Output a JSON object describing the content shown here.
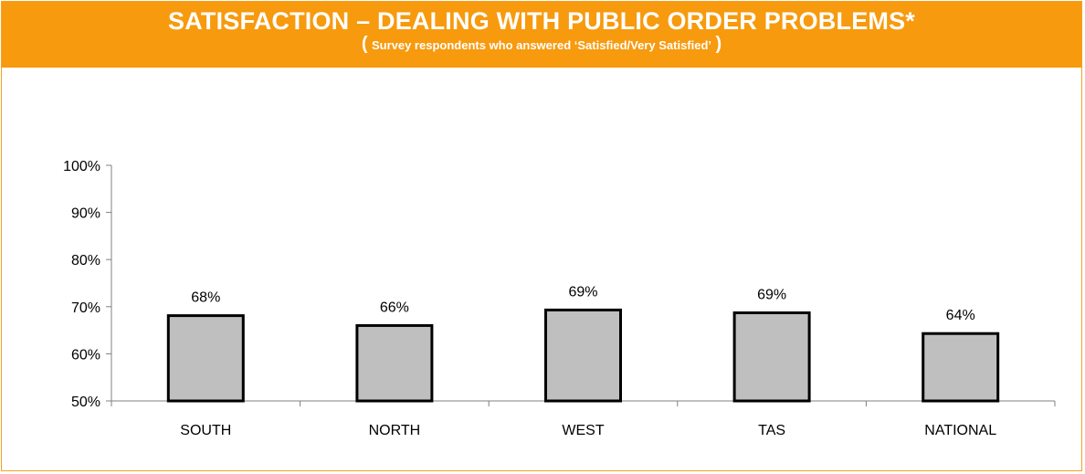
{
  "header": {
    "title": "SATISFACTION – DEALING WITH PUBLIC ORDER PROBLEMS*",
    "paren_open": "(",
    "subtitle": "Survey respondents who answered ‘Satisfied/Very Satisfied’",
    "paren_close": ")"
  },
  "colors": {
    "banner": "#f79a0e",
    "bar_fill": "#bfbfbf",
    "bar_stroke": "#000000",
    "axis": "#808080"
  },
  "chart_data": {
    "type": "bar",
    "categories": [
      "SOUTH",
      "NORTH",
      "WEST",
      "TAS",
      "NATIONAL"
    ],
    "values": [
      68,
      66,
      69,
      69,
      64
    ],
    "precise_values": [
      68.1,
      66.0,
      69.3,
      68.7,
      64.3
    ],
    "data_labels": [
      "68%",
      "66%",
      "69%",
      "69%",
      "64%"
    ],
    "ylim": [
      50,
      100
    ],
    "yticks": [
      100,
      90,
      80,
      70,
      60,
      50
    ],
    "ytick_labels": [
      "100%",
      "90%",
      "80%",
      "70%",
      "60%",
      "50%"
    ],
    "grid": false,
    "legend": "none"
  }
}
